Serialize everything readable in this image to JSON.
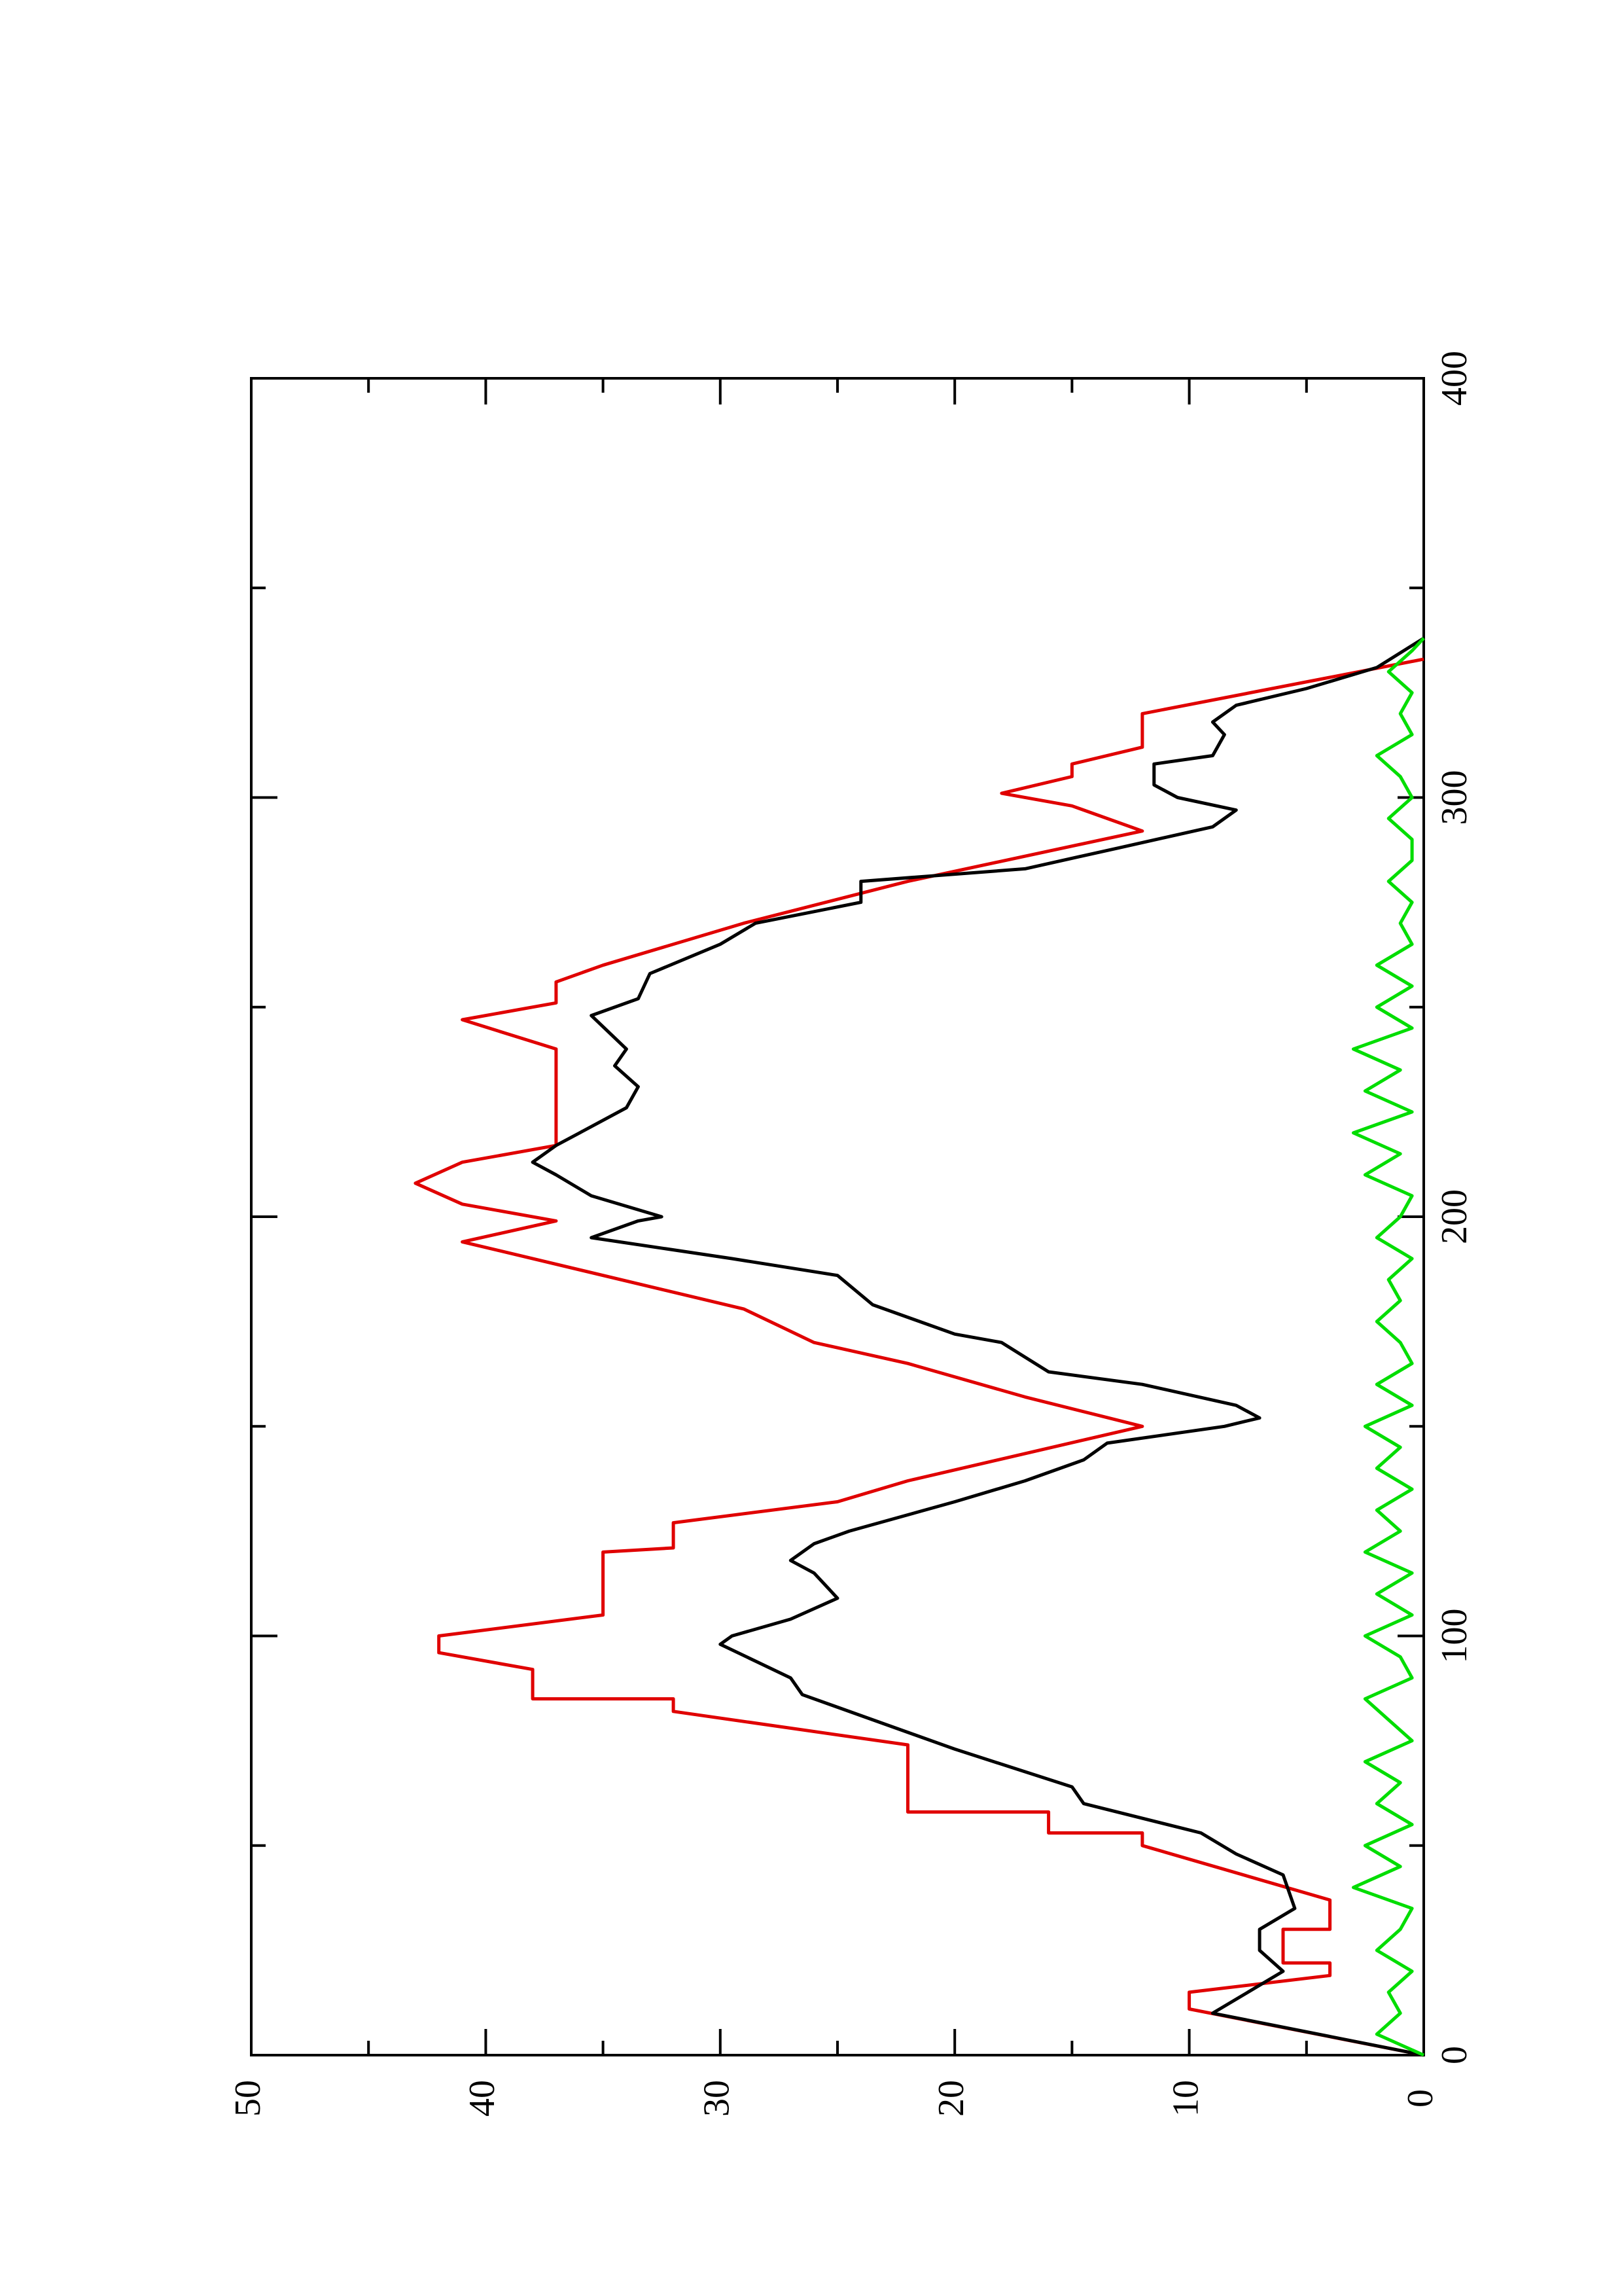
{
  "chart_data": {
    "type": "line",
    "xlim": [
      0,
      400
    ],
    "xticks": [
      0,
      100,
      200,
      300,
      400
    ],
    "xminorticks": [
      50,
      150,
      250,
      350
    ],
    "ylim": [
      0,
      50
    ],
    "yticks": [
      0,
      10,
      20,
      30,
      40,
      50
    ],
    "yminorticks": [
      5,
      15,
      25,
      35,
      45
    ],
    "rotated": true,
    "series": [
      {
        "color": "#e00000",
        "x": [
          0,
          11,
          15,
          19,
          22,
          22,
          30,
          30,
          37,
          50,
          53,
          53,
          58,
          58,
          74,
          82,
          85,
          85,
          92,
          96,
          100,
          105,
          120,
          121,
          127,
          132,
          137,
          150,
          157,
          165,
          170,
          178,
          194,
          199,
          203,
          208,
          213,
          217,
          240,
          247,
          251,
          256,
          260,
          270,
          280,
          292,
          298,
          301,
          305,
          308,
          312,
          320,
          333
        ],
        "values": [
          0,
          10,
          10,
          4,
          4,
          6,
          6,
          4,
          4,
          12,
          12,
          16,
          16,
          22,
          22,
          32,
          32,
          38,
          38,
          42,
          42,
          35,
          35,
          32,
          32,
          25,
          22,
          12,
          17,
          22,
          26,
          29,
          41,
          37,
          41,
          43,
          41,
          37,
          37,
          41,
          37,
          37,
          35,
          29,
          22,
          12,
          15,
          18,
          15,
          15,
          12,
          12,
          0
        ]
      },
      {
        "color": "#000000",
        "x": [
          0,
          10,
          20,
          25,
          30,
          35,
          43,
          48,
          53,
          60,
          64,
          73,
          80,
          86,
          90,
          98,
          100,
          104,
          109,
          115,
          118,
          122,
          125,
          132,
          137,
          142,
          146,
          150,
          152,
          155,
          160,
          163,
          170,
          172,
          179,
          186,
          190,
          195,
          199,
          200,
          205,
          210,
          213,
          217,
          220,
          226,
          231,
          236,
          240,
          248,
          252,
          258,
          265,
          270,
          275,
          280,
          283,
          288,
          293,
          297,
          300,
          303,
          308,
          310,
          315,
          318,
          322,
          326,
          331,
          338
        ],
        "values": [
          0,
          9,
          6,
          7,
          7,
          5.5,
          6,
          8,
          9.5,
          14.5,
          15,
          20,
          23.5,
          26.5,
          27,
          30,
          29.5,
          27,
          25,
          26,
          27,
          26,
          24.5,
          20,
          17,
          14.5,
          13.5,
          8.5,
          7,
          8,
          12,
          16,
          18,
          20,
          23.5,
          25,
          29.5,
          35.5,
          33.5,
          32.5,
          35.5,
          37,
          38,
          37,
          36,
          34,
          33.5,
          34.5,
          34,
          35.5,
          33.5,
          33,
          30,
          28.5,
          24,
          24,
          17,
          13,
          9,
          8,
          10.5,
          11.5,
          11.5,
          9,
          8.5,
          9,
          8,
          5,
          2,
          0
        ]
      },
      {
        "color": "#00dd00",
        "x": [
          0,
          5,
          10,
          15,
          20,
          25,
          30,
          35,
          40,
          45,
          50,
          55,
          60,
          65,
          70,
          75,
          80,
          85,
          90,
          95,
          100,
          105,
          110,
          115,
          120,
          125,
          130,
          135,
          140,
          145,
          150,
          155,
          160,
          165,
          170,
          175,
          180,
          185,
          190,
          195,
          200,
          205,
          210,
          215,
          220,
          225,
          230,
          235,
          240,
          245,
          250,
          255,
          260,
          265,
          270,
          275,
          280,
          285,
          290,
          295,
          300,
          305,
          310,
          315,
          320,
          325,
          330,
          335,
          338
        ],
        "values": [
          0,
          2,
          1,
          1.5,
          0.5,
          2,
          1,
          0.5,
          3,
          1,
          2.5,
          0.5,
          2,
          1,
          2.5,
          0.5,
          1.5,
          2.5,
          0.5,
          1,
          2.5,
          0.5,
          2,
          0.5,
          2.5,
          1,
          2,
          0.5,
          2,
          1,
          2.5,
          0.5,
          2,
          0.5,
          1,
          2,
          1,
          1.5,
          0.5,
          2,
          1,
          0.5,
          2.5,
          1,
          3,
          0.5,
          2.5,
          1,
          3,
          0.5,
          2,
          0.5,
          2,
          0.5,
          1,
          0.5,
          1.5,
          0.5,
          0.5,
          1.5,
          0.5,
          1,
          2,
          0.5,
          1,
          0.5,
          1.5,
          0.5,
          0
        ]
      }
    ]
  }
}
